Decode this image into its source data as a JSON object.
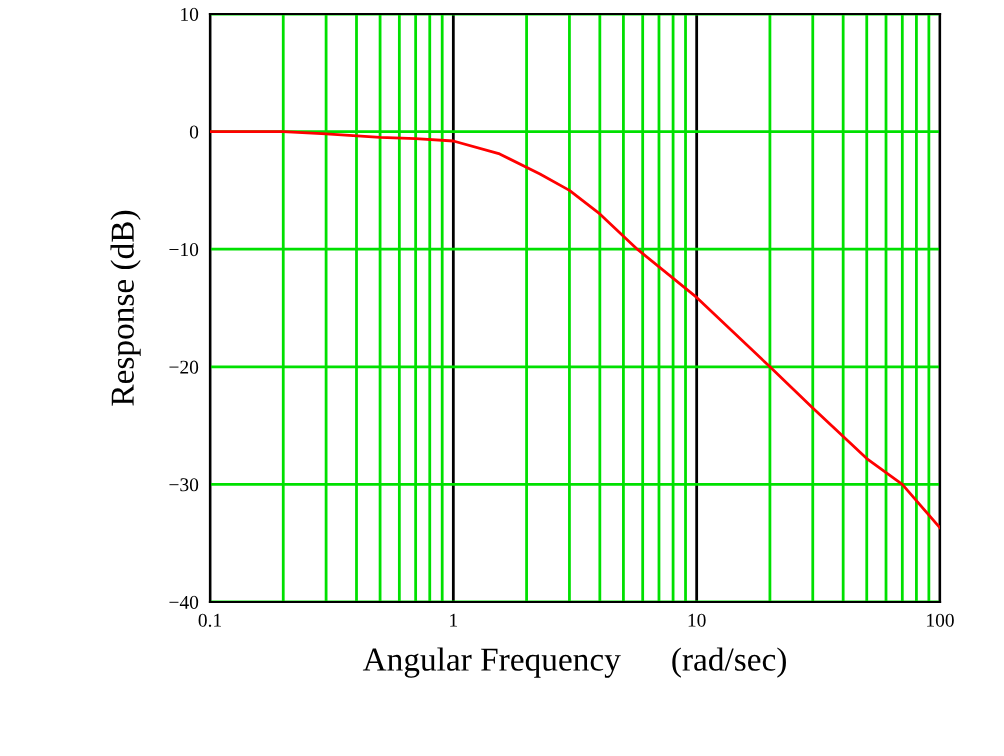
{
  "chart_data": {
    "type": "line",
    "xlabel": "Angular Frequency      (rad/sec)",
    "ylabel": "Response (dB)",
    "log": "x",
    "x": [
      0.1,
      0.2,
      0.3,
      0.5,
      0.7,
      1,
      1.55,
      2.27,
      3,
      4,
      5.7,
      10,
      20,
      30,
      50,
      70,
      100
    ],
    "series": [
      {
        "color": "#ff0000",
        "values": [
          0,
          0,
          -0.2,
          -0.5,
          -0.6,
          -0.8,
          -1.9,
          -3.6,
          -5.0,
          -7.0,
          -10,
          -14.1,
          -20.0,
          -23.5,
          -27.8,
          -30,
          -33.7
        ]
      }
    ],
    "xlim": [
      0.1,
      100
    ],
    "xticks": [
      0.1,
      1,
      10,
      100
    ],
    "ylim": [
      -40,
      10
    ],
    "yticks": [
      10,
      0,
      {
        "value": -10,
        "label": "−10"
      },
      {
        "value": -20,
        "label": "−20"
      },
      {
        "value": -30,
        "label": "−30"
      },
      {
        "value": -40,
        "label": "−40"
      }
    ],
    "grid": true,
    "marker": "none",
    "line_style": "solid"
  }
}
